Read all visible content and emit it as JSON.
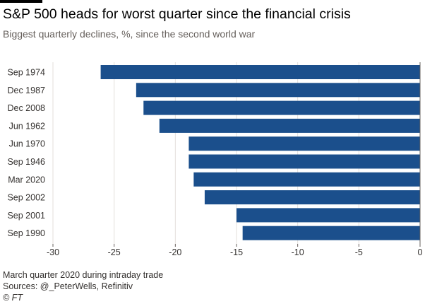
{
  "title": "S&P 500 heads for worst quarter since the financial crisis",
  "subtitle": "Biggest quarterly declines, %, since the second world war",
  "footnote": "March quarter 2020 during intraday trade",
  "sources": "Sources: @_PeterWells, Refinitiv",
  "copyright": "© FT",
  "colors": {
    "bar": "#1b4f8c",
    "grid": "#e3dfdb",
    "axis": "#66605c",
    "text": "#33302e"
  },
  "chart_data": {
    "type": "bar",
    "orientation": "horizontal",
    "categories": [
      "Sep 1974",
      "Dec 1987",
      "Dec 2008",
      "Jun 1962",
      "Jun 1970",
      "Sep 1946",
      "Mar 2020",
      "Sep 2002",
      "Sep 2001",
      "Sep 1990"
    ],
    "values": [
      -26.1,
      -23.2,
      -22.6,
      -21.3,
      -18.9,
      -18.9,
      -18.5,
      -17.6,
      -15.0,
      -14.5
    ],
    "xlim": [
      -30,
      0
    ],
    "xticks": [
      -30,
      -25,
      -20,
      -15,
      -10,
      -5,
      0
    ],
    "xlabel": "",
    "ylabel": "",
    "grid": true
  }
}
